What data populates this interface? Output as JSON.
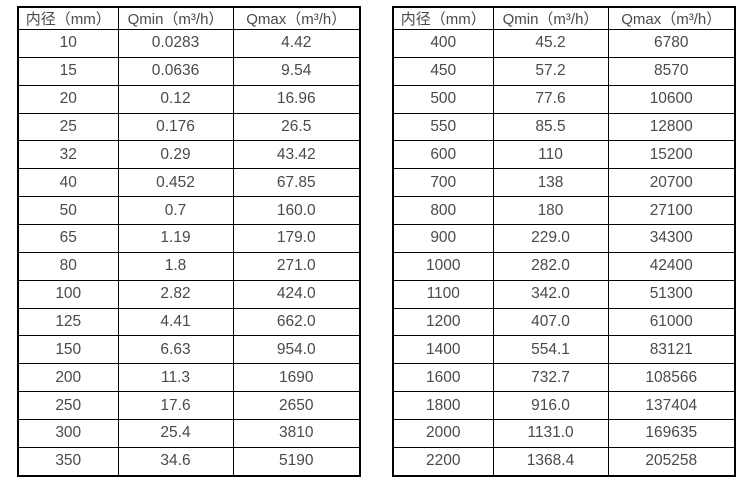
{
  "chart_data": [
    {
      "type": "table",
      "columns": [
        "内径（mm）",
        "Qmin（m³/h）",
        "Qmax（m³/h）"
      ],
      "rows": [
        [
          "10",
          "0.0283",
          "4.42"
        ],
        [
          "15",
          "0.0636",
          "9.54"
        ],
        [
          "20",
          "0.12",
          "16.96"
        ],
        [
          "25",
          "0.176",
          "26.5"
        ],
        [
          "32",
          "0.29",
          "43.42"
        ],
        [
          "40",
          "0.452",
          "67.85"
        ],
        [
          "50",
          "0.7",
          "160.0"
        ],
        [
          "65",
          "1.19",
          "179.0"
        ],
        [
          "80",
          "1.8",
          "271.0"
        ],
        [
          "100",
          "2.82",
          "424.0"
        ],
        [
          "125",
          "4.41",
          "662.0"
        ],
        [
          "150",
          "6.63",
          "954.0"
        ],
        [
          "200",
          "11.3",
          "1690"
        ],
        [
          "250",
          "17.6",
          "2650"
        ],
        [
          "300",
          "25.4",
          "3810"
        ],
        [
          "350",
          "34.6",
          "5190"
        ]
      ]
    },
    {
      "type": "table",
      "columns": [
        "内径（mm）",
        "Qmin（m³/h）",
        "Qmax（m³/h）"
      ],
      "rows": [
        [
          "400",
          "45.2",
          "6780"
        ],
        [
          "450",
          "57.2",
          "8570"
        ],
        [
          "500",
          "77.6",
          "10600"
        ],
        [
          "550",
          "85.5",
          "12800"
        ],
        [
          "600",
          "110",
          "15200"
        ],
        [
          "700",
          "138",
          "20700"
        ],
        [
          "800",
          "180",
          "27100"
        ],
        [
          "900",
          "229.0",
          "34300"
        ],
        [
          "1000",
          "282.0",
          "42400"
        ],
        [
          "1100",
          "342.0",
          "51300"
        ],
        [
          "1200",
          "407.0",
          "61000"
        ],
        [
          "1400",
          "554.1",
          "83121"
        ],
        [
          "1600",
          "732.7",
          "108566"
        ],
        [
          "1800",
          "916.0",
          "137404"
        ],
        [
          "2000",
          "1131.0",
          "169635"
        ],
        [
          "2200",
          "1368.4",
          "205258"
        ]
      ]
    }
  ],
  "colors": {
    "border": "#000000",
    "text": "#4a4a4a",
    "background": "#ffffff"
  }
}
